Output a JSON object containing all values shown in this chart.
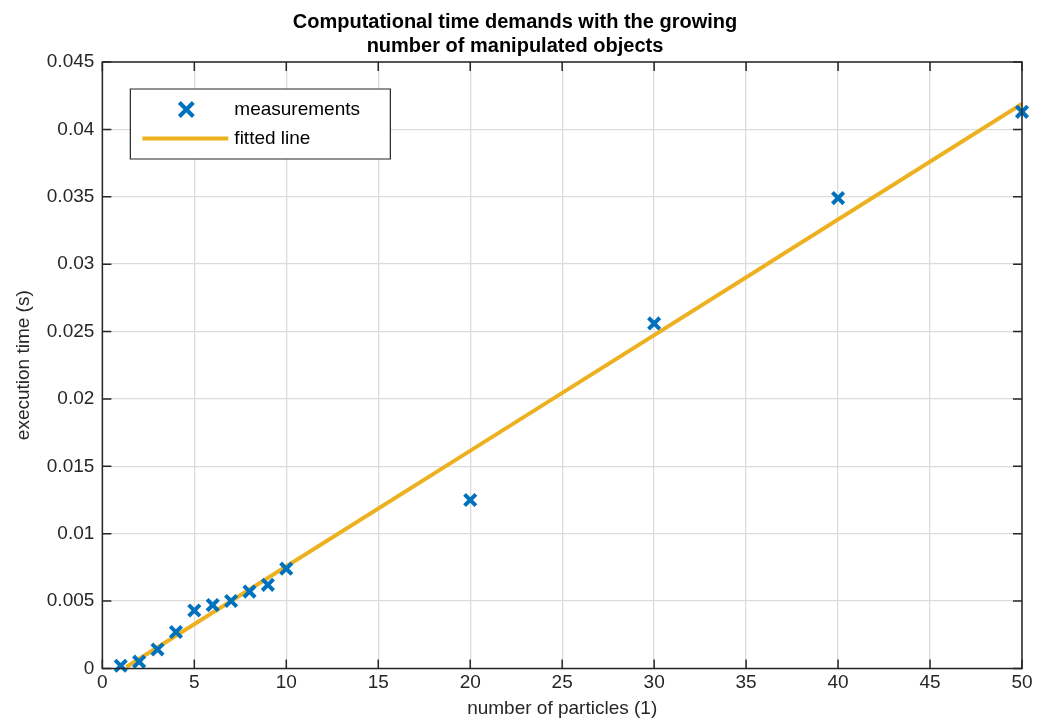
{
  "chart_data": {
    "type": "scatter",
    "title": "Computational time demands with the growing\nnumber of manipulated objects",
    "xlabel": "number of particles (1)",
    "ylabel": "execution time (s)",
    "series": [
      {
        "name": "measurements",
        "color": "#0072bd",
        "marker": "cross",
        "x": [
          1,
          2,
          3,
          4,
          5,
          6,
          7,
          8,
          9,
          10,
          20,
          30,
          40,
          50
        ],
        "values": [
          0.0002,
          0.0005,
          0.0014,
          0.0027,
          0.0043,
          0.0047,
          0.005,
          0.0057,
          0.0062,
          0.0074,
          0.0125,
          0.0256,
          0.0349,
          0.0413
        ]
      },
      {
        "name": "fitted line",
        "type": "line",
        "color": "#edb120",
        "marker": "none",
        "line_style": "solid",
        "x": [
          1.3,
          50
        ],
        "values": [
          0.0001,
          0.0419
        ]
      }
    ],
    "xlim": [
      0,
      50
    ],
    "xticks": [
      0,
      5,
      10,
      15,
      20,
      25,
      30,
      35,
      40,
      45,
      50
    ],
    "ylim": [
      0,
      0.045
    ],
    "yticks": [
      0,
      0.005,
      0.01,
      0.015,
      0.02,
      0.025,
      0.03,
      0.035,
      0.04,
      0.045
    ],
    "grid": true,
    "legend": "top left"
  }
}
